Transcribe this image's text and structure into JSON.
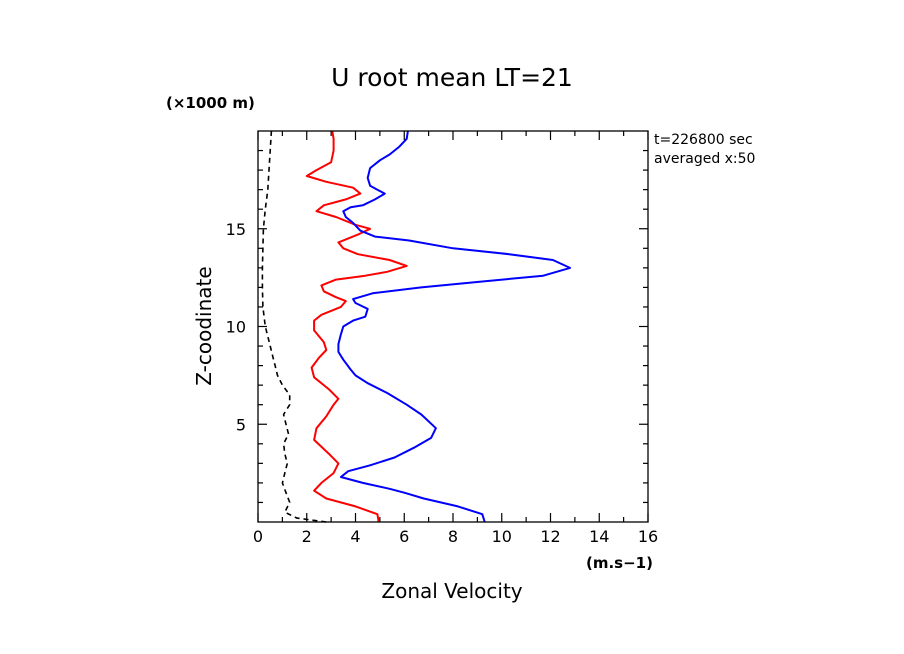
{
  "chart_data": {
    "type": "line",
    "title": "U root mean LT=21",
    "xlabel": "Zonal Velocity",
    "ylabel": "Z-coodinate",
    "x_unit": "(m.s−1)",
    "y_unit": "(×1000 m)",
    "annotations": [
      "t=226800 sec",
      "averaged  x:50"
    ],
    "xlim": [
      0,
      16
    ],
    "ylim": [
      0,
      20
    ],
    "x_ticks": [
      0,
      2,
      4,
      6,
      8,
      10,
      12,
      14,
      16
    ],
    "y_ticks": [
      5,
      10,
      15
    ],
    "grid": false,
    "series": [
      {
        "color": "#ff0000",
        "style": "solid",
        "points": [
          [
            4.95,
            0
          ],
          [
            4.9,
            0.4
          ],
          [
            4.0,
            0.8
          ],
          [
            2.8,
            1.2
          ],
          [
            2.3,
            1.6
          ],
          [
            2.6,
            2.0
          ],
          [
            3.1,
            2.5
          ],
          [
            3.3,
            3.0
          ],
          [
            2.9,
            3.5
          ],
          [
            2.3,
            4.2
          ],
          [
            2.4,
            4.8
          ],
          [
            2.8,
            5.4
          ],
          [
            3.1,
            6.0
          ],
          [
            3.3,
            6.3
          ],
          [
            2.9,
            6.8
          ],
          [
            2.3,
            7.4
          ],
          [
            2.2,
            7.9
          ],
          [
            2.5,
            8.4
          ],
          [
            2.8,
            8.8
          ],
          [
            2.7,
            9.2
          ],
          [
            2.3,
            9.8
          ],
          [
            2.3,
            10.3
          ],
          [
            2.6,
            10.6
          ],
          [
            3.4,
            11.0
          ],
          [
            3.6,
            11.3
          ],
          [
            3.2,
            11.5
          ],
          [
            2.7,
            11.8
          ],
          [
            2.6,
            12.1
          ],
          [
            3.2,
            12.4
          ],
          [
            4.4,
            12.6
          ],
          [
            5.3,
            12.8
          ],
          [
            6.1,
            13.1
          ],
          [
            5.4,
            13.4
          ],
          [
            4.1,
            13.7
          ],
          [
            3.5,
            14.0
          ],
          [
            3.3,
            14.3
          ],
          [
            4.1,
            14.7
          ],
          [
            4.6,
            15.0
          ],
          [
            4.0,
            15.2
          ],
          [
            3.2,
            15.6
          ],
          [
            2.4,
            15.9
          ],
          [
            2.7,
            16.2
          ],
          [
            3.6,
            16.5
          ],
          [
            4.2,
            16.8
          ],
          [
            3.9,
            17.1
          ],
          [
            2.8,
            17.4
          ],
          [
            2.0,
            17.7
          ],
          [
            2.4,
            18.0
          ],
          [
            3.0,
            18.4
          ],
          [
            3.1,
            19.0
          ],
          [
            3.1,
            19.6
          ],
          [
            3.05,
            20
          ]
        ]
      },
      {
        "color": "#0000ff",
        "style": "solid",
        "points": [
          [
            9.3,
            0
          ],
          [
            9.2,
            0.4
          ],
          [
            8.2,
            0.8
          ],
          [
            6.8,
            1.2
          ],
          [
            6.0,
            1.5
          ],
          [
            5.4,
            1.7
          ],
          [
            4.3,
            2.0
          ],
          [
            3.4,
            2.3
          ],
          [
            3.7,
            2.6
          ],
          [
            4.6,
            2.9
          ],
          [
            5.6,
            3.3
          ],
          [
            6.4,
            3.8
          ],
          [
            7.1,
            4.3
          ],
          [
            7.3,
            4.8
          ],
          [
            6.7,
            5.5
          ],
          [
            6.1,
            6.0
          ],
          [
            5.3,
            6.6
          ],
          [
            4.5,
            7.1
          ],
          [
            4.0,
            7.5
          ],
          [
            3.8,
            7.8
          ],
          [
            3.5,
            8.3
          ],
          [
            3.3,
            8.7
          ],
          [
            3.3,
            9.1
          ],
          [
            3.4,
            9.6
          ],
          [
            3.5,
            10.0
          ],
          [
            3.9,
            10.3
          ],
          [
            4.4,
            10.5
          ],
          [
            4.5,
            10.9
          ],
          [
            4.0,
            11.2
          ],
          [
            3.9,
            11.4
          ],
          [
            4.7,
            11.7
          ],
          [
            6.7,
            12.0
          ],
          [
            9.2,
            12.3
          ],
          [
            11.7,
            12.6
          ],
          [
            12.8,
            13.0
          ],
          [
            12.1,
            13.4
          ],
          [
            10.3,
            13.7
          ],
          [
            8.0,
            14.0
          ],
          [
            6.2,
            14.4
          ],
          [
            4.8,
            14.6
          ],
          [
            4.2,
            14.9
          ],
          [
            3.9,
            15.3
          ],
          [
            3.6,
            15.6
          ],
          [
            3.5,
            15.9
          ],
          [
            3.8,
            16.1
          ],
          [
            4.3,
            16.2
          ],
          [
            4.8,
            16.5
          ],
          [
            5.2,
            16.8
          ],
          [
            4.9,
            17.0
          ],
          [
            4.6,
            17.2
          ],
          [
            4.5,
            17.6
          ],
          [
            4.6,
            18.1
          ],
          [
            5.0,
            18.5
          ],
          [
            5.4,
            18.8
          ],
          [
            5.8,
            19.2
          ],
          [
            6.1,
            19.6
          ],
          [
            6.15,
            20
          ]
        ]
      },
      {
        "color": "#000000",
        "style": "dashed",
        "points": [
          [
            2.8,
            0
          ],
          [
            1.6,
            0.2
          ],
          [
            1.1,
            0.5
          ],
          [
            1.3,
            1.0
          ],
          [
            1.15,
            1.5
          ],
          [
            1.0,
            2.0
          ],
          [
            1.1,
            2.5
          ],
          [
            1.2,
            3.0
          ],
          [
            1.1,
            3.5
          ],
          [
            1.05,
            4.0
          ],
          [
            1.25,
            4.5
          ],
          [
            1.15,
            5.0
          ],
          [
            1.05,
            5.5
          ],
          [
            1.3,
            6.0
          ],
          [
            1.3,
            6.5
          ],
          [
            1.0,
            7.0
          ],
          [
            0.8,
            7.5
          ],
          [
            0.7,
            8.0
          ],
          [
            0.6,
            8.5
          ],
          [
            0.5,
            9.0
          ],
          [
            0.4,
            9.5
          ],
          [
            0.3,
            10.0
          ],
          [
            0.25,
            10.5
          ],
          [
            0.2,
            11.0
          ],
          [
            0.18,
            12.0
          ],
          [
            0.18,
            13.0
          ],
          [
            0.2,
            14.0
          ],
          [
            0.22,
            15.0
          ],
          [
            0.3,
            16.0
          ],
          [
            0.4,
            17.0
          ],
          [
            0.45,
            18.0
          ],
          [
            0.5,
            19.0
          ],
          [
            0.55,
            20
          ]
        ]
      }
    ]
  }
}
